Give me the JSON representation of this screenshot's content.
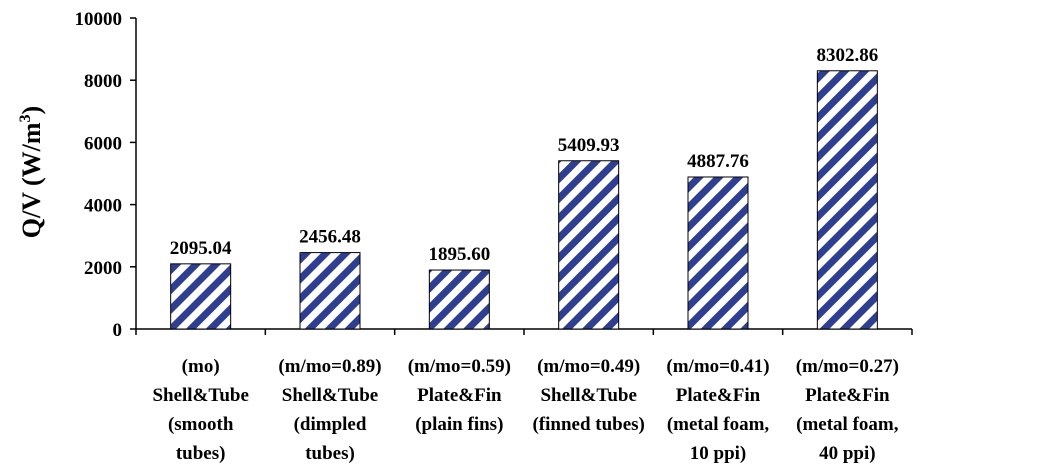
{
  "chart_data": {
    "type": "bar",
    "title": "",
    "xlabel": "",
    "ylabel": "Q/V (W/m",
    "ylabel_superscript": "3",
    "ylabel_suffix": ")",
    "ylim": [
      0,
      10000
    ],
    "yticks": [
      "0",
      "2000",
      "4000",
      "6000",
      "8000",
      "10000"
    ],
    "categories": [
      [
        "(mo)",
        "Shell&Tube",
        "(smooth",
        "tubes)"
      ],
      [
        "(m/mo=0.89)",
        "Shell&Tube",
        "(dimpled",
        "tubes)"
      ],
      [
        "(m/mo=0.59)",
        "Plate&Fin",
        "(plain fins)"
      ],
      [
        "(m/mo=0.49)",
        "Shell&Tube",
        "(finned tubes)"
      ],
      [
        "(m/mo=0.41)",
        "Plate&Fin",
        "(metal foam,",
        "10 ppi)"
      ],
      [
        "(m/mo=0.27)",
        "Plate&Fin",
        "(metal foam,",
        "40 ppi)"
      ]
    ],
    "values": [
      2095.04,
      2456.48,
      1895.6,
      5409.93,
      4887.76,
      8302.86
    ],
    "data_labels": [
      "2095.04",
      "2456.48",
      "1895.60",
      "5409.93",
      "4887.76",
      "8302.86"
    ],
    "bar_fill": "hatched diagonal stripes",
    "bar_color": "#2e3f91",
    "grid": false,
    "legend": "none"
  }
}
